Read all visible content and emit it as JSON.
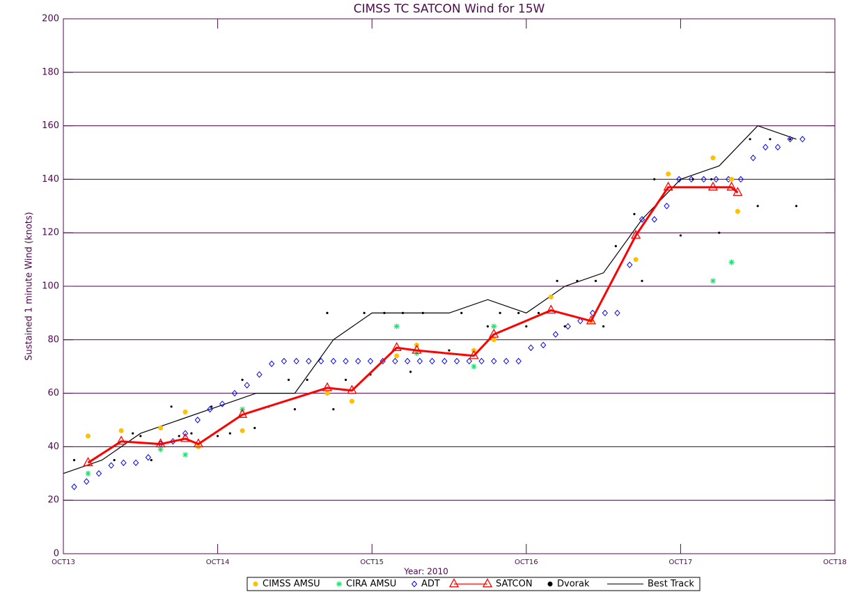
{
  "chart_data": {
    "type": "line",
    "title": "CIMSS TC SATCON Wind for  15W",
    "x_label": "Year: 2010",
    "y_label": "Sustained 1 minute Wind (knots)",
    "xlim": [
      0,
      5
    ],
    "xticks": [
      {
        "value": 0,
        "label": "OCT13"
      },
      {
        "value": 1,
        "label": "OCT14"
      },
      {
        "value": 2,
        "label": "OCT15"
      },
      {
        "value": 3,
        "label": "OCT16"
      },
      {
        "value": 4,
        "label": "OCT17"
      },
      {
        "value": 5,
        "label": "OCT18"
      }
    ],
    "ylim": [
      0,
      200
    ],
    "yticks": [
      0,
      20,
      40,
      60,
      80,
      100,
      120,
      140,
      160,
      180,
      200
    ],
    "grid": true,
    "grid_color": "#400040",
    "legend": "bottom",
    "series": [
      {
        "name": "CIMSS AMSU",
        "color": "#ffc000",
        "marker": "circle",
        "line": false,
        "x": [
          0.16,
          0.375,
          0.63,
          0.79,
          0.875,
          1.16,
          1.71,
          1.87,
          2.16,
          2.29,
          2.66,
          2.79,
          3.16,
          3.42,
          3.71,
          3.92,
          4.21,
          4.33,
          4.37
        ],
        "values": [
          44,
          46,
          47,
          53,
          40,
          46,
          60,
          57,
          74,
          78,
          76,
          80,
          96,
          87,
          110,
          142,
          148,
          140,
          128
        ]
      },
      {
        "name": "CIRA AMSU",
        "color": "#20e070",
        "marker": "asterisk",
        "line": false,
        "x": [
          0.16,
          0.63,
          0.79,
          1.16,
          2.16,
          2.29,
          2.66,
          2.79,
          4.21,
          4.33
        ],
        "values": [
          30,
          39,
          37,
          54,
          85,
          75,
          70,
          85,
          102,
          109
        ]
      },
      {
        "name": "ADT",
        "color": "#0000ff",
        "marker": "diamond",
        "line": false,
        "x": [
          0.07,
          0.15,
          0.23,
          0.31,
          0.39,
          0.47,
          0.55,
          0.63,
          0.71,
          0.79,
          0.87,
          0.95,
          1.03,
          1.11,
          1.19,
          1.27,
          1.35,
          1.43,
          1.51,
          1.59,
          1.67,
          1.75,
          1.83,
          1.91,
          1.99,
          2.07,
          2.15,
          2.23,
          2.31,
          2.39,
          2.47,
          2.55,
          2.63,
          2.71,
          2.79,
          2.87,
          2.95,
          3.03,
          3.11,
          3.19,
          3.27,
          3.35,
          3.43,
          3.51,
          3.59,
          3.67,
          3.75,
          3.83,
          3.91,
          3.99,
          4.07,
          4.15,
          4.23,
          4.31,
          4.39,
          4.47,
          4.55,
          4.63,
          4.71,
          4.79
        ],
        "values": [
          25,
          27,
          30,
          33,
          34,
          34,
          36,
          41,
          42,
          45,
          50,
          54,
          56,
          60,
          63,
          67,
          71,
          72,
          72,
          72,
          72,
          72,
          72,
          72,
          72,
          72,
          72,
          72,
          72,
          72,
          72,
          72,
          72,
          72,
          72,
          72,
          72,
          77,
          78,
          82,
          85,
          87,
          90,
          90,
          90,
          108,
          125,
          125,
          130,
          140,
          140,
          140,
          140,
          140,
          140,
          148,
          152,
          152,
          155,
          155
        ]
      },
      {
        "name": "SATCON",
        "color": "#ff0000",
        "marker": "triangle",
        "line": true,
        "x": [
          0.16,
          0.375,
          0.63,
          0.79,
          0.875,
          1.16,
          1.71,
          1.87,
          2.16,
          2.29,
          2.66,
          2.79,
          3.16,
          3.42,
          3.71,
          3.92,
          4.21,
          4.33,
          4.37
        ],
        "values": [
          34,
          42,
          41,
          43,
          41,
          52,
          62,
          61,
          77,
          76,
          74,
          82,
          91,
          87,
          119,
          137,
          137,
          137,
          135
        ]
      },
      {
        "name": "Dvorak",
        "color": "#000000",
        "marker": "dot",
        "line": false,
        "x": [
          0.07,
          0.33,
          0.45,
          0.5,
          0.57,
          0.7,
          0.75,
          0.83,
          0.96,
          1.0,
          1.08,
          1.16,
          1.24,
          1.33,
          1.46,
          1.5,
          1.58,
          1.71,
          1.75,
          1.83,
          1.95,
          1.99,
          2.08,
          2.2,
          2.25,
          2.33,
          2.5,
          2.58,
          2.75,
          2.83,
          2.95,
          3.0,
          3.08,
          3.2,
          3.25,
          3.33,
          3.45,
          3.5,
          3.58,
          3.7,
          3.75,
          3.83,
          4.0,
          4.08,
          4.2,
          4.25,
          4.33,
          4.45,
          4.5,
          4.58,
          4.71,
          4.75
        ],
        "values": [
          35,
          35,
          45,
          44,
          35,
          55,
          44,
          45,
          55,
          44,
          45,
          65,
          47,
          55,
          65,
          54,
          65,
          90,
          54,
          65,
          90,
          67,
          90,
          90,
          68,
          90,
          76,
          90,
          85,
          90,
          90,
          85,
          90,
          102,
          85,
          102,
          102,
          85,
          115,
          127,
          102,
          140,
          119,
          140,
          140,
          120,
          140,
          155,
          130,
          155,
          155,
          130
        ]
      },
      {
        "name": "Best Track",
        "color": "#000000",
        "marker": null,
        "line": true,
        "x": [
          0,
          0.25,
          0.5,
          0.75,
          1.0,
          1.25,
          1.5,
          1.75,
          2.0,
          2.25,
          2.5,
          2.75,
          3.0,
          3.25,
          3.5,
          3.75,
          4.0,
          4.25,
          4.5,
          4.75
        ],
        "values": [
          30,
          35,
          45,
          50,
          55,
          60,
          60,
          80,
          90,
          90,
          90,
          95,
          90,
          100,
          105,
          125,
          140,
          145,
          160,
          155
        ]
      }
    ]
  }
}
